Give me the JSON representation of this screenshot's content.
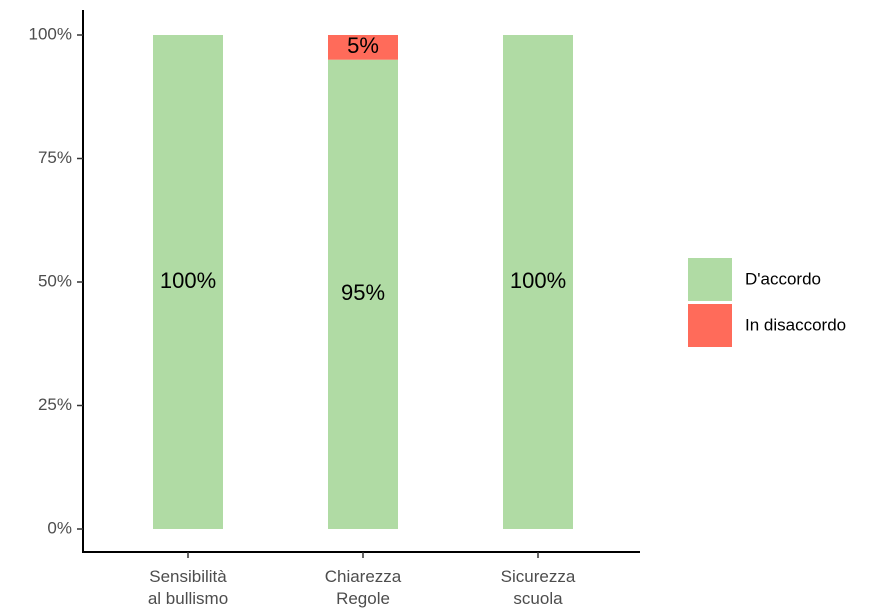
{
  "chart_data": {
    "type": "stacked_bar",
    "categories": [
      "Sensibilità\nal bullismo",
      "Chiarezza\nRegole",
      "Sicurezza\nscuola"
    ],
    "series": [
      {
        "name": "D'accordo",
        "color": "#b0dba4",
        "values": [
          100,
          95,
          100
        ],
        "value_labels": [
          "100%",
          "95%",
          "100%"
        ]
      },
      {
        "name": "In disaccordo",
        "color": "#ff6b5a",
        "values": [
          0,
          5,
          0
        ],
        "value_labels": [
          null,
          "5%",
          null
        ]
      }
    ],
    "ylim": [
      0,
      100
    ],
    "yticks": [
      {
        "value": 0,
        "label": "0%"
      },
      {
        "value": 25,
        "label": "25%"
      },
      {
        "value": 50,
        "label": "50%"
      },
      {
        "value": 75,
        "label": "75%"
      },
      {
        "value": 100,
        "label": "100%"
      }
    ],
    "grid": false,
    "legend": "right"
  }
}
